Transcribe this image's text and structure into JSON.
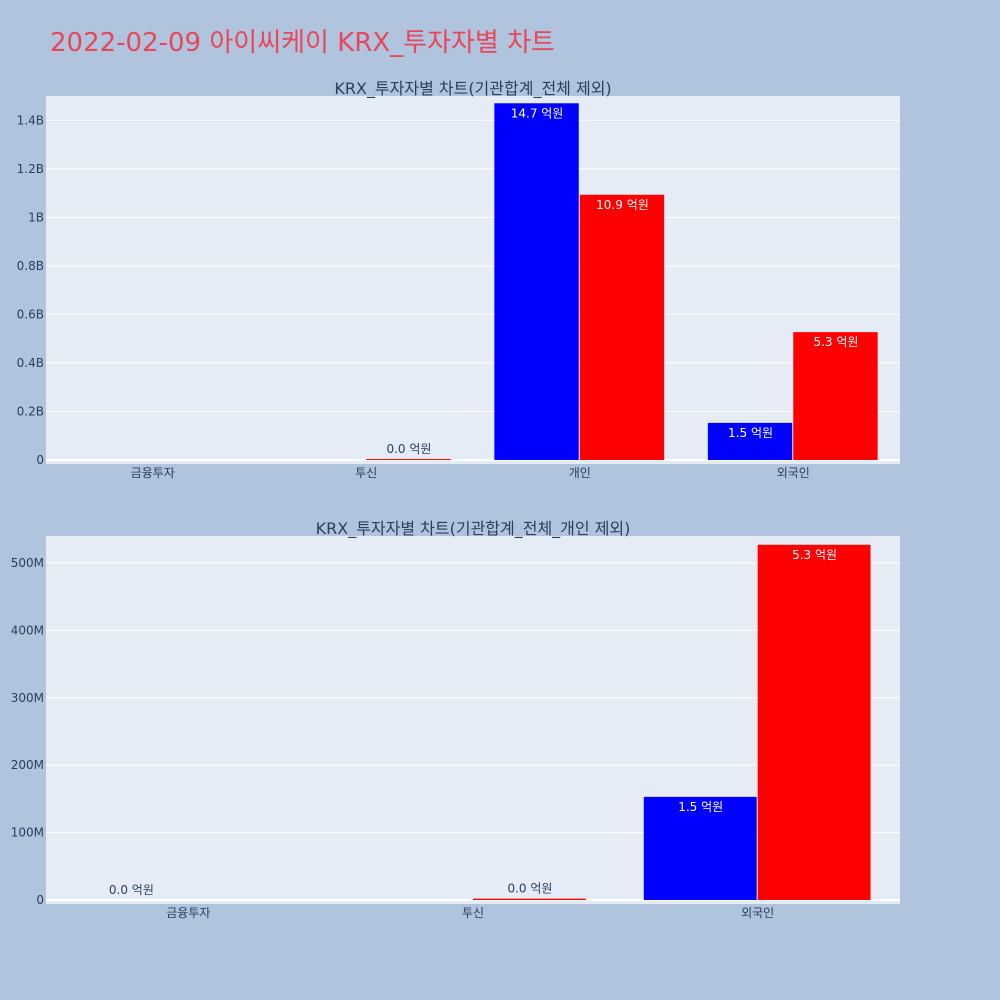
{
  "page": {
    "title": "2022-02-09 아이씨케이 KRX_투자자별 차트",
    "background": "#b0c4de",
    "title_color": "#e8465a"
  },
  "colors": {
    "sell": "#0000ff",
    "buy": "#ff0000",
    "plot_bg": "#e5ecf6",
    "grid": "#ffffff"
  },
  "chart_data": [
    {
      "type": "bar",
      "title": "KRX_투자자별 차트(기관합계_전체 제외)",
      "categories": [
        "금융투자",
        "투신",
        "개인",
        "외국인"
      ],
      "series": [
        {
          "color": "#0000ff",
          "values": [
            0,
            0,
            1470000000,
            153000000
          ],
          "labels": [
            "",
            "",
            "14.7 억원",
            "1.5 억원"
          ]
        },
        {
          "color": "#ff0000",
          "values": [
            0,
            2000000,
            1093000000,
            527000000
          ],
          "labels": [
            "",
            "0.0 억원",
            "10.9 억원",
            "5.3 억원"
          ]
        }
      ],
      "ylim": [
        0,
        1500000000
      ],
      "yticks": [
        0,
        200000000,
        400000000,
        600000000,
        800000000,
        1000000000,
        1200000000,
        1400000000
      ],
      "ytick_labels": [
        "0",
        "0.2B",
        "0.4B",
        "0.6B",
        "0.8B",
        "1B",
        "1.2B",
        "1.4B"
      ],
      "grid": true
    },
    {
      "type": "bar",
      "title": "KRX_투자자별 차트(기관합계_전체_개인 제외)",
      "categories": [
        "금융투자",
        "투신",
        "외국인"
      ],
      "series": [
        {
          "color": "#0000ff",
          "values": [
            0,
            0,
            153000000
          ],
          "labels": [
            "0.0 억원",
            "",
            "1.5 억원"
          ]
        },
        {
          "color": "#ff0000",
          "values": [
            0,
            2000000,
            527000000
          ],
          "labels": [
            "",
            "0.0 억원",
            "5.3 억원"
          ]
        }
      ],
      "ylim": [
        0,
        540000000
      ],
      "yticks": [
        0,
        100000000,
        200000000,
        300000000,
        400000000,
        500000000
      ],
      "ytick_labels": [
        "0",
        "100M",
        "200M",
        "300M",
        "400M",
        "500M"
      ],
      "grid": true
    }
  ]
}
